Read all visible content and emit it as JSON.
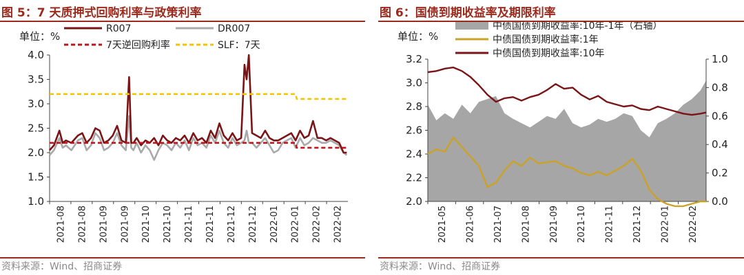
{
  "colors": {
    "title": "#9b2a1d",
    "r007": "#7a1416",
    "dr007": "#a9a9a9",
    "reverse_repo": "#c0131a",
    "slf": "#f5c400",
    "spread_area": "#a6a6a6",
    "y1": "#c9a227",
    "y10": "#7a1416"
  },
  "chart_data": [
    {
      "type": "line",
      "title": "图 5：7 天质押式回购利率与政策利率",
      "unit_label": "单位：%",
      "source": "资料来源：Wind、招商证券",
      "ylim": [
        1.0,
        4.0
      ],
      "yticks": [
        "1.0",
        "1.5",
        "2.0",
        "2.5",
        "3.0",
        "3.5",
        "4.0"
      ],
      "xticks": [
        "2021-08",
        "2021-08",
        "2021-09",
        "2021-09",
        "2021-10",
        "2021-10",
        "2021-11",
        "2021-11",
        "2021-12",
        "2021-12",
        "2022-01",
        "2022-01",
        "2022-02",
        "2022-02"
      ],
      "x_range": [
        0,
        13.7
      ],
      "legend": [
        "R007",
        "DR007",
        "7天逆回购利率",
        "SLF：7天"
      ],
      "series": [
        {
          "name": "R007",
          "x": [
            0,
            0.2,
            0.45,
            0.6,
            0.75,
            1.0,
            1.3,
            1.5,
            1.7,
            1.9,
            2.1,
            2.3,
            2.5,
            2.7,
            2.9,
            3.1,
            3.3,
            3.5,
            3.65,
            3.75,
            3.85,
            4.0,
            4.2,
            4.4,
            4.6,
            4.8,
            5.0,
            5.2,
            5.4,
            5.6,
            5.8,
            6.0,
            6.2,
            6.4,
            6.6,
            6.8,
            7.0,
            7.2,
            7.4,
            7.6,
            7.8,
            8.0,
            8.2,
            8.4,
            8.6,
            8.8,
            8.95,
            9.05,
            9.15,
            9.3,
            9.5,
            9.7,
            9.9,
            10.1,
            10.3,
            10.5,
            10.7,
            10.9,
            11.1,
            11.3,
            11.5,
            11.7,
            11.9,
            12.1,
            12.3,
            12.5,
            12.7,
            12.9,
            13.1,
            13.3,
            13.5,
            13.65
          ],
          "values": [
            2.05,
            2.15,
            2.45,
            2.2,
            2.25,
            2.2,
            2.35,
            2.4,
            2.2,
            2.3,
            2.5,
            2.45,
            2.2,
            2.25,
            2.35,
            2.55,
            2.25,
            2.2,
            3.55,
            2.2,
            2.2,
            2.3,
            2.15,
            2.25,
            2.2,
            2.3,
            2.15,
            2.35,
            2.25,
            2.2,
            2.3,
            2.25,
            2.35,
            2.2,
            2.4,
            2.25,
            2.3,
            2.2,
            2.45,
            2.3,
            2.6,
            2.35,
            2.25,
            2.4,
            2.25,
            2.3,
            3.8,
            3.5,
            4.0,
            2.4,
            2.35,
            2.3,
            2.45,
            2.3,
            2.25,
            2.25,
            2.3,
            2.35,
            2.4,
            2.25,
            2.45,
            2.3,
            2.35,
            2.65,
            2.3,
            2.3,
            2.25,
            2.3,
            2.25,
            2.2,
            2.0,
            2.0
          ]
        },
        {
          "name": "DR007",
          "x": [
            0,
            0.2,
            0.45,
            0.6,
            0.75,
            1.0,
            1.3,
            1.5,
            1.7,
            1.9,
            2.1,
            2.3,
            2.5,
            2.7,
            2.9,
            3.1,
            3.3,
            3.5,
            3.65,
            3.75,
            3.85,
            4.0,
            4.2,
            4.4,
            4.6,
            4.8,
            5.0,
            5.2,
            5.4,
            5.6,
            5.8,
            6.0,
            6.2,
            6.4,
            6.6,
            6.8,
            7.0,
            7.2,
            7.4,
            7.6,
            7.8,
            8.0,
            8.2,
            8.4,
            8.6,
            8.8,
            8.95,
            9.05,
            9.15,
            9.3,
            9.5,
            9.7,
            9.9,
            10.1,
            10.3,
            10.5,
            10.7,
            10.9,
            11.1,
            11.3,
            11.5,
            11.7,
            11.9,
            12.1,
            12.3,
            12.5,
            12.7,
            12.9,
            13.1,
            13.3,
            13.5,
            13.65
          ],
          "values": [
            1.95,
            2.05,
            2.3,
            2.1,
            2.15,
            2.05,
            2.25,
            2.3,
            2.05,
            2.15,
            2.4,
            2.3,
            2.05,
            2.1,
            2.2,
            2.4,
            2.15,
            2.05,
            2.75,
            2.1,
            2.05,
            2.2,
            2.0,
            2.15,
            2.05,
            1.85,
            2.05,
            2.2,
            2.15,
            2.05,
            2.2,
            2.1,
            2.25,
            2.05,
            2.3,
            2.15,
            2.2,
            2.1,
            2.35,
            2.2,
            2.45,
            2.2,
            2.1,
            2.3,
            2.15,
            2.2,
            2.25,
            2.45,
            2.2,
            2.2,
            2.1,
            2.2,
            2.3,
            2.15,
            2.0,
            2.05,
            2.2,
            2.25,
            2.3,
            2.1,
            2.3,
            2.15,
            2.2,
            2.3,
            2.25,
            2.2,
            2.2,
            2.25,
            2.2,
            2.15,
            2.0,
            1.95
          ]
        },
        {
          "name": "7天逆回购利率",
          "x": [
            0,
            11.3,
            11.35,
            13.7
          ],
          "values": [
            2.2,
            2.2,
            2.1,
            2.1
          ],
          "dashed": true
        },
        {
          "name": "SLF：7天",
          "x": [
            0,
            11.3,
            11.35,
            13.7
          ],
          "values": [
            3.2,
            3.2,
            3.1,
            3.1
          ],
          "dashed": true
        }
      ]
    },
    {
      "type": "line",
      "title": "图 6：国债到期收益率及期限利率",
      "unit_label": "单位：%",
      "source": "资料来源：Wind、招商证券",
      "ylim": [
        2.0,
        3.2
      ],
      "yticks": [
        "2.0",
        "2.2",
        "2.4",
        "2.6",
        "2.8",
        "3.0",
        "3.2"
      ],
      "y2lim": [
        0.0,
        1.0
      ],
      "y2ticks": [
        "0.0",
        "0.2",
        "0.4",
        "0.6",
        "0.8",
        "1.0"
      ],
      "xticks": [
        "2021-05",
        "2021-06",
        "2021-07",
        "2021-08",
        "2021-09",
        "2021-10",
        "2021-11",
        "2021-12",
        "2022-01",
        "2022-02"
      ],
      "x_range": [
        0,
        9.8
      ],
      "legend": [
        "中债国债到期收益率:10年-1年（右轴）",
        "中债国债到期收益率:1年",
        "中债国债到期收益率:10年"
      ],
      "series": [
        {
          "name": "中债国债到期收益率:10年-1年（右轴）",
          "axis": "right",
          "type": "area",
          "x": [
            0,
            0.3,
            0.6,
            0.9,
            1.2,
            1.5,
            1.8,
            2.1,
            2.4,
            2.7,
            3.0,
            3.3,
            3.6,
            3.9,
            4.2,
            4.5,
            4.8,
            5.1,
            5.4,
            5.7,
            6.0,
            6.3,
            6.6,
            6.9,
            7.2,
            7.5,
            7.8,
            8.1,
            8.4,
            8.7,
            9.0,
            9.3,
            9.6,
            9.8
          ],
          "values": [
            0.68,
            0.57,
            0.62,
            0.58,
            0.68,
            0.62,
            0.7,
            0.72,
            0.74,
            0.62,
            0.58,
            0.55,
            0.52,
            0.56,
            0.6,
            0.58,
            0.65,
            0.55,
            0.52,
            0.54,
            0.58,
            0.56,
            0.58,
            0.62,
            0.6,
            0.5,
            0.45,
            0.55,
            0.58,
            0.62,
            0.68,
            0.72,
            0.78,
            0.85
          ]
        },
        {
          "name": "中债国债到期收益率:1年",
          "axis": "left",
          "x": [
            0,
            0.3,
            0.6,
            0.9,
            1.2,
            1.5,
            1.8,
            2.1,
            2.4,
            2.7,
            3.0,
            3.3,
            3.6,
            3.9,
            4.2,
            4.5,
            4.8,
            5.1,
            5.4,
            5.7,
            6.0,
            6.3,
            6.6,
            6.9,
            7.2,
            7.5,
            7.8,
            8.1,
            8.4,
            8.7,
            9.0,
            9.3,
            9.6,
            9.8
          ],
          "values": [
            2.4,
            2.44,
            2.42,
            2.54,
            2.46,
            2.38,
            2.3,
            2.12,
            2.16,
            2.26,
            2.34,
            2.3,
            2.37,
            2.32,
            2.33,
            2.34,
            2.3,
            2.28,
            2.24,
            2.22,
            2.25,
            2.22,
            2.26,
            2.3,
            2.36,
            2.26,
            2.1,
            2.02,
            1.98,
            1.96,
            1.96,
            1.98,
            2.0,
            2.0
          ]
        },
        {
          "name": "中债国债到期收益率:10年",
          "axis": "left",
          "x": [
            0,
            0.3,
            0.6,
            0.9,
            1.2,
            1.5,
            1.8,
            2.1,
            2.4,
            2.7,
            3.0,
            3.3,
            3.6,
            3.9,
            4.2,
            4.5,
            4.8,
            5.1,
            5.4,
            5.7,
            6.0,
            6.3,
            6.6,
            6.9,
            7.2,
            7.5,
            7.8,
            8.1,
            8.4,
            8.7,
            9.0,
            9.3,
            9.6,
            9.8
          ],
          "values": [
            3.09,
            3.1,
            3.12,
            3.13,
            3.1,
            3.05,
            2.98,
            2.9,
            2.84,
            2.87,
            2.88,
            2.85,
            2.88,
            2.9,
            2.94,
            2.99,
            2.95,
            2.96,
            2.9,
            2.86,
            2.89,
            2.84,
            2.82,
            2.8,
            2.81,
            2.78,
            2.77,
            2.8,
            2.78,
            2.76,
            2.74,
            2.73,
            2.74,
            2.75
          ]
        }
      ]
    }
  ]
}
